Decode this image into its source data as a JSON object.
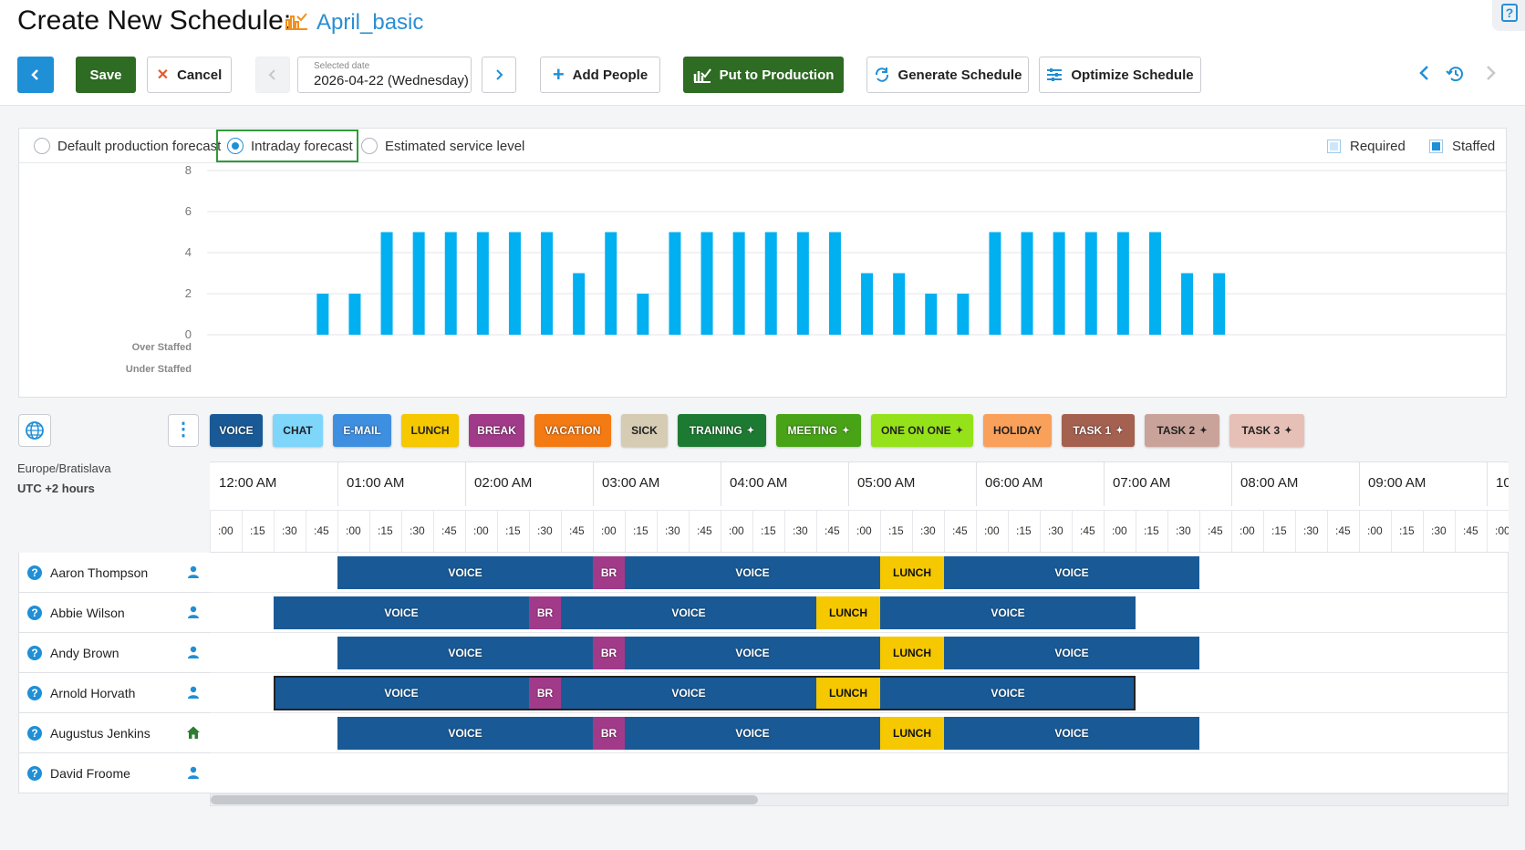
{
  "header": {
    "title": "Create New Schedule:",
    "schedule_name": "April_basic",
    "icon": "schedule-chart-icon"
  },
  "toolbar": {
    "back_icon": "chevron-left-icon",
    "save_label": "Save",
    "cancel_label": "Cancel",
    "selected_date_label": "Selected date",
    "selected_date_value": "2026-04-22 (Wednesday)",
    "add_people_label": "Add People",
    "put_to_production_label": "Put to Production",
    "generate_schedule_label": "Generate Schedule",
    "optimize_schedule_label": "Optimize Schedule"
  },
  "forecast": {
    "options": [
      "Default production forecast",
      "Intraday forecast",
      "Estimated service level"
    ],
    "selected": "Intraday forecast",
    "legend": [
      "Required",
      "Staffed"
    ],
    "y_ticks": [
      "8",
      "6",
      "4",
      "2",
      "0"
    ],
    "row_labels": [
      "Over Staffed",
      "Under Staffed"
    ]
  },
  "chart_data": {
    "type": "bar",
    "series": [
      {
        "name": "Staffed",
        "values": [
          0,
          0,
          0,
          2,
          2,
          5,
          5,
          5,
          5,
          5,
          5,
          3,
          5,
          2,
          5,
          5,
          5,
          5,
          5,
          5,
          3,
          3,
          2,
          2,
          5,
          5,
          5,
          5,
          5,
          5,
          3,
          3,
          0,
          0,
          0,
          0,
          0,
          0,
          0,
          0
        ]
      }
    ],
    "ylim": [
      0,
      8
    ],
    "grid": true,
    "color": "#00b0f0"
  },
  "activities": [
    {
      "label": "VOICE",
      "color": "#195a96"
    },
    {
      "label": "CHAT",
      "color": "#7fd6fb"
    },
    {
      "label": "E-MAIL",
      "color": "#3f8fe0"
    },
    {
      "label": "LUNCH",
      "color": "#f6c800"
    },
    {
      "label": "BREAK",
      "color": "#a23a8a"
    },
    {
      "label": "VACATION",
      "color": "#f47a13"
    },
    {
      "label": "SICK",
      "color": "#d6ccb4"
    },
    {
      "label": "TRAINING",
      "color": "#1d7a32"
    },
    {
      "label": "MEETING",
      "color": "#48a317"
    },
    {
      "label": "ONE ON ONE",
      "color": "#96e21a"
    },
    {
      "label": "HOLIDAY",
      "color": "#f9a05b"
    },
    {
      "label": "TASK 1",
      "color": "#a46150"
    },
    {
      "label": "TASK 2",
      "color": "#c9a39a"
    },
    {
      "label": "TASK 3",
      "color": "#e6c0b6"
    }
  ],
  "timezone": {
    "name": "Europe/Bratislava",
    "offset": "UTC +2 hours"
  },
  "timeline": {
    "hours": [
      "12:00 AM",
      "01:00 AM",
      "02:00 AM",
      "03:00 AM",
      "04:00 AM",
      "05:00 AM",
      "06:00 AM",
      "07:00 AM",
      "08:00 AM",
      "09:00 AM",
      "10"
    ],
    "minutes": [
      ":00",
      ":15",
      ":30",
      ":45"
    ]
  },
  "people": [
    {
      "name": "Aaron Thompson",
      "icon": "user-icon",
      "shifts": [
        {
          "label": "VOICE",
          "kind": "voice",
          "start": 4,
          "end": 12
        },
        {
          "label": "BR",
          "kind": "br",
          "start": 12,
          "end": 13
        },
        {
          "label": "VOICE",
          "kind": "voice",
          "start": 13,
          "end": 21
        },
        {
          "label": "LUNCH",
          "kind": "lunch",
          "start": 21,
          "end": 23
        },
        {
          "label": "VOICE",
          "kind": "voice",
          "start": 23,
          "end": 31
        }
      ]
    },
    {
      "name": "Abbie Wilson",
      "icon": "user-icon",
      "shifts": [
        {
          "label": "VOICE",
          "kind": "voice",
          "start": 2,
          "end": 10
        },
        {
          "label": "BR",
          "kind": "br",
          "start": 10,
          "end": 11
        },
        {
          "label": "VOICE",
          "kind": "voice",
          "start": 11,
          "end": 19
        },
        {
          "label": "LUNCH",
          "kind": "lunch",
          "start": 19,
          "end": 21
        },
        {
          "label": "VOICE",
          "kind": "voice",
          "start": 21,
          "end": 29
        }
      ]
    },
    {
      "name": "Andy Brown",
      "icon": "user-icon",
      "shifts": [
        {
          "label": "VOICE",
          "kind": "voice",
          "start": 4,
          "end": 12
        },
        {
          "label": "BR",
          "kind": "br",
          "start": 12,
          "end": 13
        },
        {
          "label": "VOICE",
          "kind": "voice",
          "start": 13,
          "end": 21
        },
        {
          "label": "LUNCH",
          "kind": "lunch",
          "start": 21,
          "end": 23
        },
        {
          "label": "VOICE",
          "kind": "voice",
          "start": 23,
          "end": 31
        }
      ]
    },
    {
      "name": "Arnold Horvath",
      "icon": "user-icon",
      "selected": true,
      "shifts": [
        {
          "label": "VOICE",
          "kind": "voice",
          "start": 2,
          "end": 10
        },
        {
          "label": "BR",
          "kind": "br",
          "start": 10,
          "end": 11
        },
        {
          "label": "VOICE",
          "kind": "voice",
          "start": 11,
          "end": 19
        },
        {
          "label": "LUNCH",
          "kind": "lunch",
          "start": 19,
          "end": 21
        },
        {
          "label": "VOICE",
          "kind": "voice",
          "start": 21,
          "end": 29
        }
      ]
    },
    {
      "name": "Augustus Jenkins",
      "icon": "home-icon",
      "shifts": [
        {
          "label": "VOICE",
          "kind": "voice",
          "start": 4,
          "end": 12
        },
        {
          "label": "BR",
          "kind": "br",
          "start": 12,
          "end": 13
        },
        {
          "label": "VOICE",
          "kind": "voice",
          "start": 13,
          "end": 21
        },
        {
          "label": "LUNCH",
          "kind": "lunch",
          "start": 21,
          "end": 23
        },
        {
          "label": "VOICE",
          "kind": "voice",
          "start": 23,
          "end": 31
        }
      ]
    },
    {
      "name": "David Froome",
      "icon": "user-icon",
      "shifts": []
    }
  ]
}
